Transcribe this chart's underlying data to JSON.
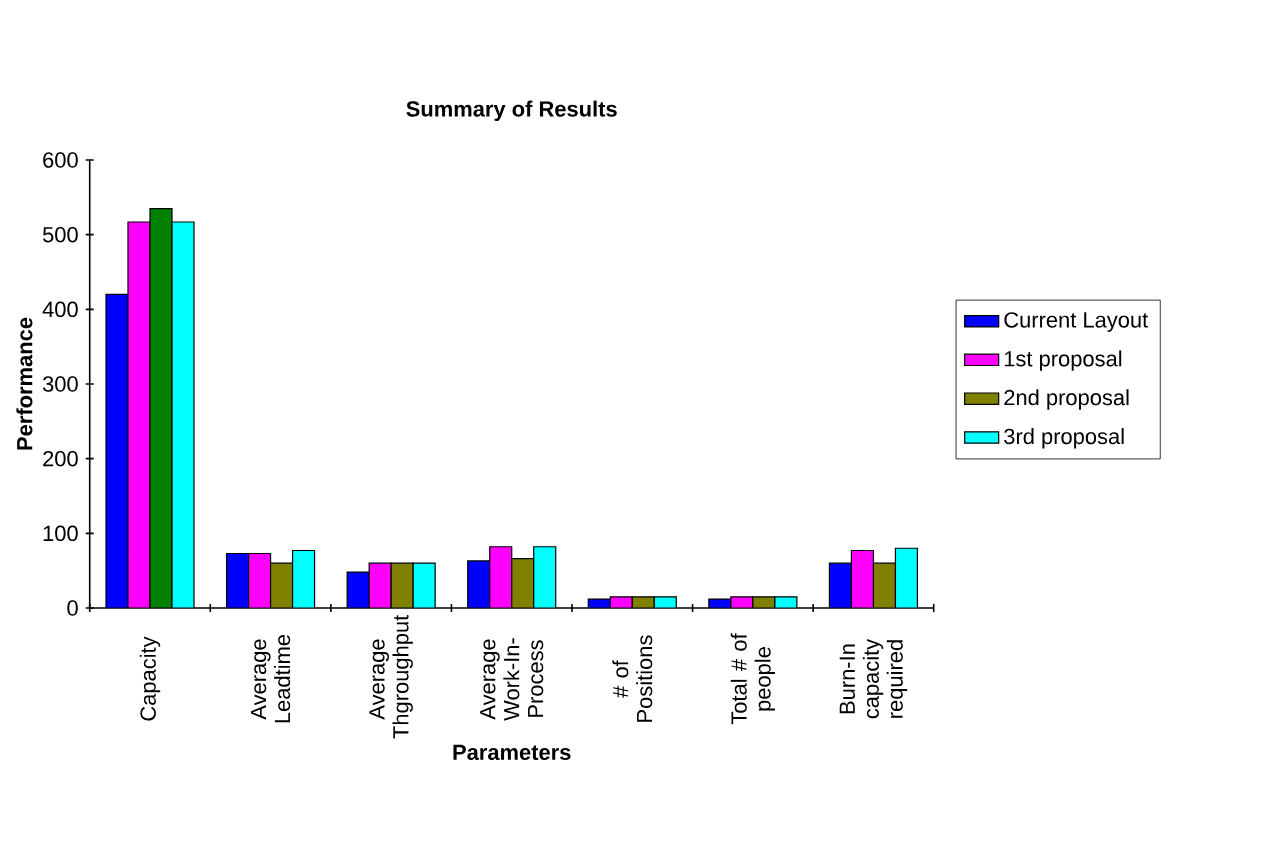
{
  "chart_data": {
    "type": "bar",
    "title": "Summary of Results",
    "xlabel": "Parameters",
    "ylabel": "Performance",
    "categories": [
      "Capacity",
      "Average Leadtime",
      "Average Thgroughput",
      "Average Work-In-Process",
      "# of Positions",
      "Total # of people",
      "Burn-In capacity required"
    ],
    "series": [
      {
        "name": "Current Layout",
        "color": "#0000ff",
        "values": [
          420,
          73,
          48,
          63,
          12,
          12,
          60
        ]
      },
      {
        "name": "1st proposal",
        "color": "#ff00ff",
        "values": [
          517,
          73,
          60,
          82,
          15,
          15,
          77
        ]
      },
      {
        "name": "2nd proposal",
        "color": "#808000",
        "colors": [
          "#008000",
          "#808000",
          "#808000",
          "#808000",
          "#808000",
          "#808000",
          "#808000"
        ],
        "values": [
          535,
          60,
          60,
          66,
          15,
          15,
          60
        ]
      },
      {
        "name": "3rd proposal",
        "color": "#00ffff",
        "values": [
          517,
          77,
          60,
          82,
          15,
          15,
          80
        ]
      }
    ],
    "ylim": [
      0,
      600
    ],
    "yticks": [
      0,
      100,
      200,
      300,
      400,
      500,
      600
    ],
    "grid": false,
    "legend": "right"
  }
}
